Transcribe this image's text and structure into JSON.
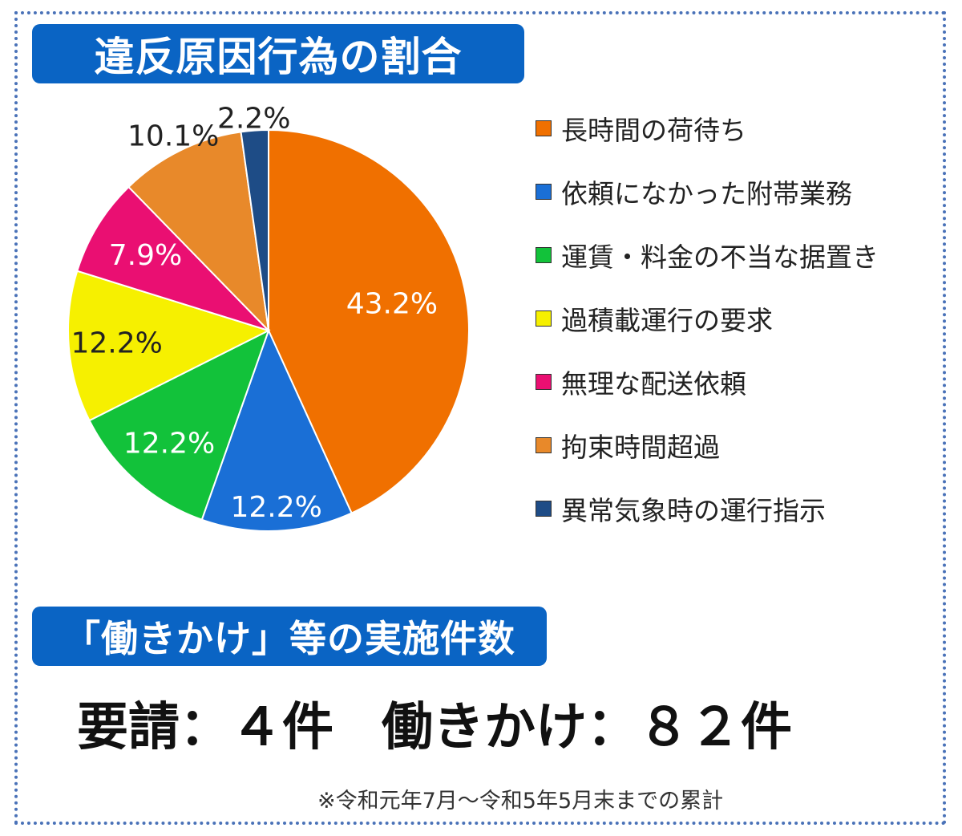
{
  "chart_title": "違反原因行為の割合",
  "chart_data": {
    "type": "pie",
    "categories": [
      "長時間の荷待ち",
      "依頼になかった附帯業務",
      "運賃・料金の不当な据置き",
      "過積載運行の要求",
      "無理な配送依頼",
      "拘束時間超過",
      "異常気象時の運行指示"
    ],
    "values": [
      43.2,
      12.2,
      12.2,
      12.2,
      7.9,
      10.1,
      2.2
    ],
    "data_labels": [
      "43.2%",
      "12.2%",
      "12.2%",
      "12.2%",
      "7.9%",
      "10.1%",
      "2.2%"
    ],
    "colors": [
      "#f07000",
      "#1a6fd6",
      "#12c23a",
      "#f6f000",
      "#ea0f72",
      "#e8892a",
      "#1e4c86"
    ],
    "label_colors": [
      "#ffffff",
      "#ffffff",
      "#ffffff",
      "#222222",
      "#ffffff",
      "#222222",
      "#222222"
    ],
    "legend_position": "right"
  },
  "section2_title": "「働きかけ」等の実施件数",
  "counts": {
    "request": "要請：４件",
    "hatarakikake": "働きかけ：８２件"
  },
  "footnote": "※令和元年7月～令和5年5月末までの累計"
}
